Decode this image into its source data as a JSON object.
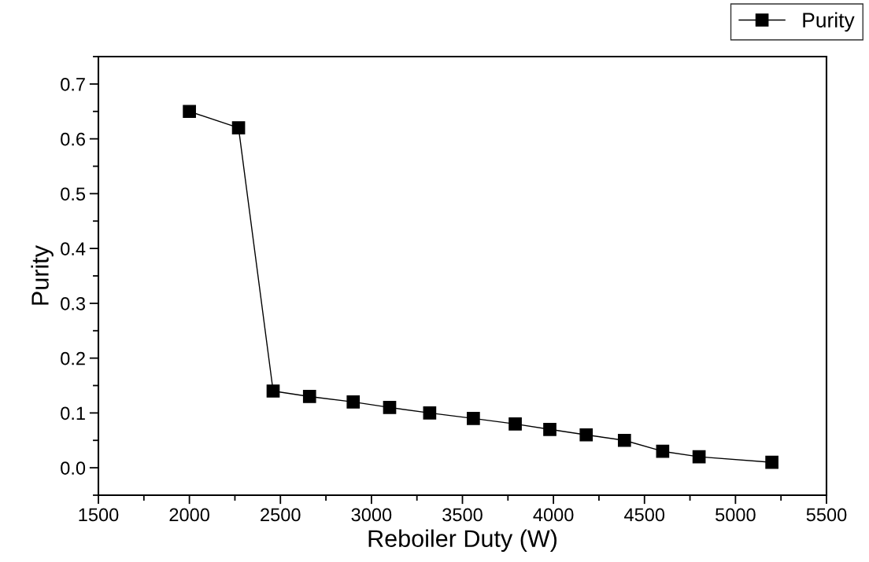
{
  "chart_data": {
    "type": "line",
    "xlabel": "Reboiler Duty (W)",
    "ylabel": "Purity",
    "x": [
      2000,
      2270,
      2460,
      2660,
      2900,
      3100,
      3320,
      3560,
      3790,
      3980,
      4180,
      4390,
      4600,
      4800,
      5200
    ],
    "series": [
      {
        "name": "Purity",
        "color": "#000000",
        "values": [
          0.65,
          0.62,
          0.14,
          0.13,
          0.12,
          0.11,
          0.1,
          0.09,
          0.08,
          0.07,
          0.06,
          0.05,
          0.03,
          0.02,
          0.01
        ]
      }
    ],
    "xlim": [
      1500,
      5500
    ],
    "xticks": [
      1500,
      2000,
      2500,
      3000,
      3500,
      4000,
      4500,
      5000,
      5500
    ],
    "ylim": [
      -0.05,
      0.75
    ],
    "yticks": [
      {
        "value": 0.0,
        "label": "0.0"
      },
      0.1,
      0.2,
      0.3,
      0.4,
      0.5,
      0.6,
      0.7
    ],
    "marker": "square",
    "line_style": "solid",
    "grid": false,
    "legend": "top right"
  }
}
